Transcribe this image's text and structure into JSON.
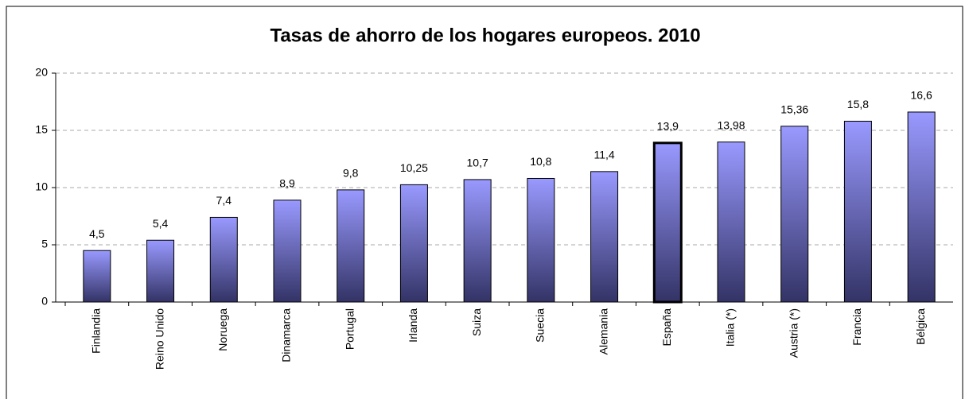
{
  "chart_data": {
    "type": "bar",
    "title": "Tasas de ahorro de los hogares europeos. 2010",
    "categories": [
      "Finlandia",
      "Reino Unido",
      "Noruega",
      "Dinamarca",
      "Portugal",
      "Irlanda",
      "Suiza",
      "Suecia",
      "Alemania",
      "España",
      "Italia (*)",
      "Austria (*)",
      "Francia",
      "Bélgica"
    ],
    "values": [
      4.5,
      5.4,
      7.4,
      8.9,
      9.8,
      10.25,
      10.7,
      10.8,
      11.4,
      13.9,
      13.98,
      15.36,
      15.8,
      16.6
    ],
    "value_labels": [
      "4,5",
      "5,4",
      "7,4",
      "8,9",
      "9,8",
      "10,25",
      "10,7",
      "10,8",
      "11,4",
      "13,9",
      "13,98",
      "15,36",
      "15,8",
      "16,6"
    ],
    "color": [
      "#9999ff",
      "#333366"
    ],
    "highlight": 9,
    "ylim": [
      0,
      20
    ],
    "yticks": [
      0,
      5,
      10,
      15,
      20
    ],
    "grid": true
  }
}
